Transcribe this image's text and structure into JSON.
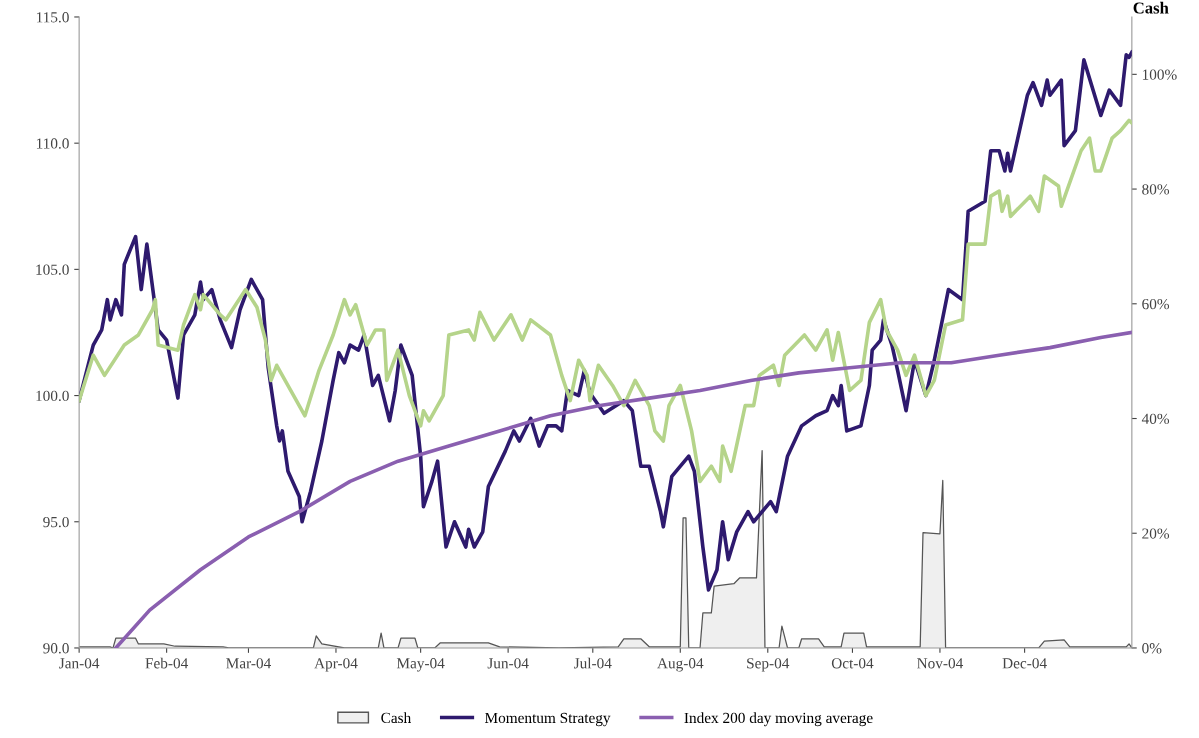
{
  "chart_data": {
    "type": "line",
    "y2label": "Cash",
    "legend": "bottom",
    "grid": false,
    "xlim": [
      "2004-01-01",
      "2005-01-08"
    ],
    "xticks": [
      {
        "value": "2004-01-01",
        "label": "Jan-04"
      },
      {
        "value": "2004-02-01",
        "label": "Feb-04"
      },
      {
        "value": "2004-03-01",
        "label": "Mar-04"
      },
      {
        "value": "2004-04-01",
        "label": "Apr-04"
      },
      {
        "value": "2004-05-01",
        "label": "May-04"
      },
      {
        "value": "2004-06-01",
        "label": "Jun-04"
      },
      {
        "value": "2004-07-01",
        "label": "Jul-04"
      },
      {
        "value": "2004-08-01",
        "label": "Aug-04"
      },
      {
        "value": "2004-09-01",
        "label": "Sep-04"
      },
      {
        "value": "2004-10-01",
        "label": "Oct-04"
      },
      {
        "value": "2004-11-01",
        "label": "Nov-04"
      },
      {
        "value": "2004-12-01",
        "label": "Dec-04"
      }
    ],
    "ylim": [
      90,
      115
    ],
    "yticks": [
      {
        "value": 90,
        "label": "90.0"
      },
      {
        "value": 95,
        "label": "95.0"
      },
      {
        "value": 100,
        "label": "100.0"
      },
      {
        "value": 105,
        "label": "105.0"
      },
      {
        "value": 110,
        "label": "110.0"
      },
      {
        "value": 115,
        "label": "115.0"
      }
    ],
    "y2lim": [
      0,
      110
    ],
    "y2ticks": [
      {
        "value": 0,
        "label": "0%"
      },
      {
        "value": 20,
        "label": "20%"
      },
      {
        "value": 40,
        "label": "40%"
      },
      {
        "value": 60,
        "label": "60%"
      },
      {
        "value": 80,
        "label": "80%"
      },
      {
        "value": 100,
        "label": "100%"
      }
    ],
    "series": [
      {
        "name": "Cash",
        "type": "area",
        "axis": "y2",
        "color": "#efefef",
        "x": [
          "2004-01-01",
          "2004-01-12",
          "2004-01-13",
          "2004-01-14",
          "2004-01-21",
          "2004-01-22",
          "2004-01-31",
          "2004-02-04",
          "2004-02-21",
          "2004-02-23",
          "2004-03-24",
          "2004-03-25",
          "2004-03-27",
          "2004-04-04",
          "2004-04-16",
          "2004-04-17",
          "2004-04-18",
          "2004-04-23",
          "2004-04-24",
          "2004-04-29",
          "2004-04-30",
          "2004-05-06",
          "2004-05-08",
          "2004-05-25",
          "2004-05-29",
          "2004-06-19",
          "2004-07-10",
          "2004-07-12",
          "2004-07-18",
          "2004-07-21",
          "2004-08-01",
          "2004-08-02",
          "2004-08-03",
          "2004-08-04",
          "2004-08-08",
          "2004-08-09",
          "2004-08-12",
          "2004-08-13",
          "2004-08-20",
          "2004-08-22",
          "2004-08-28",
          "2004-08-30",
          "2004-08-31",
          "2004-09-05",
          "2004-09-06",
          "2004-09-08",
          "2004-09-12",
          "2004-09-13",
          "2004-09-19",
          "2004-09-21",
          "2004-09-27",
          "2004-09-28",
          "2004-10-05",
          "2004-10-06",
          "2004-10-25",
          "2004-10-26",
          "2004-11-01",
          "2004-11-02",
          "2004-11-03",
          "2004-12-06",
          "2004-12-08",
          "2004-12-15",
          "2004-12-17",
          "2005-01-06",
          "2005-01-07",
          "2005-01-08"
        ],
        "values": [
          0.2,
          0.2,
          0,
          1.7,
          1.7,
          0.7,
          0.7,
          0.3,
          0.2,
          0,
          0,
          2.1,
          0.7,
          0,
          0,
          2.6,
          0,
          0,
          1.7,
          1.7,
          0,
          0,
          0.9,
          0.9,
          0.2,
          0,
          0.2,
          1.6,
          1.6,
          0.2,
          0.2,
          22.7,
          22.7,
          0,
          0,
          6.1,
          6.1,
          10.8,
          11.2,
          12.2,
          12.2,
          34.4,
          0,
          0,
          3.8,
          0,
          0,
          1.6,
          1.6,
          0.2,
          0.2,
          2.6,
          2.6,
          0.2,
          0.2,
          20.1,
          19.9,
          29.2,
          0,
          0,
          1.2,
          1.4,
          0.2,
          0.2,
          0.7,
          0
        ]
      },
      {
        "name": "Momentum Strategy",
        "color": "#2e1a6e",
        "x": [
          "2004-01-01",
          "2004-01-06",
          "2004-01-09",
          "2004-01-11",
          "2004-01-12",
          "2004-01-14",
          "2004-01-16",
          "2004-01-17",
          "2004-01-21",
          "2004-01-23",
          "2004-01-25",
          "2004-01-29",
          "2004-02-01",
          "2004-02-05",
          "2004-02-07",
          "2004-02-11",
          "2004-02-13",
          "2004-02-14",
          "2004-02-17",
          "2004-02-20",
          "2004-02-24",
          "2004-02-27",
          "2004-03-02",
          "2004-03-03",
          "2004-03-06",
          "2004-03-08",
          "2004-03-11",
          "2004-03-12",
          "2004-03-13",
          "2004-03-15",
          "2004-03-19",
          "2004-03-20",
          "2004-03-23",
          "2004-03-27",
          "2004-03-31",
          "2004-04-02",
          "2004-04-04",
          "2004-04-06",
          "2004-04-09",
          "2004-04-11",
          "2004-04-14",
          "2004-04-16",
          "2004-04-20",
          "2004-04-22",
          "2004-04-24",
          "2004-04-28",
          "2004-05-01",
          "2004-05-02",
          "2004-05-05",
          "2004-05-07",
          "2004-05-10",
          "2004-05-13",
          "2004-05-17",
          "2004-05-18",
          "2004-05-20",
          "2004-05-23",
          "2004-05-25",
          "2004-05-31",
          "2004-06-03",
          "2004-06-05",
          "2004-06-09",
          "2004-06-12",
          "2004-06-15",
          "2004-06-18",
          "2004-06-20",
          "2004-06-22",
          "2004-06-26",
          "2004-06-28",
          "2004-06-30",
          "2004-07-05",
          "2004-07-12",
          "2004-07-15",
          "2004-07-18",
          "2004-07-21",
          "2004-07-25",
          "2004-07-26",
          "2004-07-29",
          "2004-08-04",
          "2004-08-06",
          "2004-08-09",
          "2004-08-11",
          "2004-08-14",
          "2004-08-16",
          "2004-08-18",
          "2004-08-21",
          "2004-08-25",
          "2004-08-27",
          "2004-09-02",
          "2004-09-04",
          "2004-09-08",
          "2004-09-13",
          "2004-09-18",
          "2004-09-22",
          "2004-09-24",
          "2004-09-26",
          "2004-09-27",
          "2004-09-29",
          "2004-10-04",
          "2004-10-07",
          "2004-10-08",
          "2004-10-11",
          "2004-10-12",
          "2004-10-15",
          "2004-10-17",
          "2004-10-20",
          "2004-10-23",
          "2004-10-27",
          "2004-10-30",
          "2004-11-04",
          "2004-11-09",
          "2004-11-11",
          "2004-11-17",
          "2004-11-19",
          "2004-11-22",
          "2004-11-24",
          "2004-11-25",
          "2004-11-26",
          "2004-12-02",
          "2004-12-04",
          "2004-12-07",
          "2004-12-09",
          "2004-12-10",
          "2004-12-14",
          "2004-12-15",
          "2004-12-19",
          "2004-12-22",
          "2004-12-28",
          "2004-12-31",
          "2005-01-04",
          "2005-01-06",
          "2005-01-07",
          "2005-01-08"
        ],
        "values": [
          99.8,
          102.0,
          102.6,
          103.8,
          103.0,
          103.8,
          103.2,
          105.2,
          106.3,
          104.2,
          106.0,
          102.6,
          102.2,
          99.9,
          102.4,
          103.2,
          104.5,
          103.8,
          104.2,
          103.0,
          101.9,
          103.4,
          104.6,
          104.4,
          103.8,
          101.1,
          98.8,
          98.2,
          98.6,
          97.0,
          96.0,
          95.0,
          96.2,
          98.2,
          100.6,
          101.7,
          101.3,
          102.0,
          101.8,
          102.4,
          100.4,
          100.8,
          99.0,
          100.2,
          102.0,
          100.8,
          97.6,
          95.6,
          96.6,
          97.4,
          94.0,
          95.0,
          94.0,
          94.7,
          94.0,
          94.6,
          96.4,
          97.8,
          98.6,
          98.2,
          99.1,
          98.0,
          98.8,
          98.8,
          98.6,
          100.2,
          100.0,
          101.0,
          100.1,
          99.3,
          99.8,
          99.4,
          97.2,
          97.2,
          95.4,
          94.8,
          96.8,
          97.6,
          97.0,
          94.0,
          92.3,
          93.1,
          95.0,
          93.5,
          94.6,
          95.4,
          95.0,
          95.8,
          95.4,
          97.6,
          98.8,
          99.2,
          99.4,
          100.0,
          99.6,
          100.4,
          98.6,
          98.8,
          100.4,
          101.8,
          102.2,
          103.0,
          102.0,
          101.0,
          99.4,
          101.4,
          100.0,
          101.4,
          104.2,
          103.8,
          107.3,
          107.7,
          109.7,
          109.7,
          108.9,
          109.6,
          108.9,
          111.9,
          112.4,
          111.5,
          112.5,
          111.9,
          112.5,
          109.9,
          110.5,
          113.3,
          111.1,
          112.1,
          111.5,
          113.5,
          113.4,
          113.6
        ]
      },
      {
        "color": "#b5d48a",
        "x": [
          "2004-01-01",
          "2004-01-06",
          "2004-01-10",
          "2004-01-17",
          "2004-01-22",
          "2004-01-27",
          "2004-01-28",
          "2004-01-29",
          "2004-02-05",
          "2004-02-07",
          "2004-02-11",
          "2004-02-13",
          "2004-02-14",
          "2004-02-20",
          "2004-02-22",
          "2004-02-29",
          "2004-03-04",
          "2004-03-07",
          "2004-03-09",
          "2004-03-11",
          "2004-03-17",
          "2004-03-21",
          "2004-03-26",
          "2004-03-31",
          "2004-04-04",
          "2004-04-06",
          "2004-04-08",
          "2004-04-12",
          "2004-04-15",
          "2004-04-18",
          "2004-04-19",
          "2004-04-23",
          "2004-04-27",
          "2004-05-01",
          "2004-05-02",
          "2004-05-04",
          "2004-05-09",
          "2004-05-11",
          "2004-05-18",
          "2004-05-20",
          "2004-05-22",
          "2004-05-27",
          "2004-06-02",
          "2004-06-06",
          "2004-06-09",
          "2004-06-16",
          "2004-06-20",
          "2004-06-23",
          "2004-06-26",
          "2004-06-29",
          "2004-06-30",
          "2004-07-03",
          "2004-07-08",
          "2004-07-12",
          "2004-07-16",
          "2004-07-21",
          "2004-07-23",
          "2004-07-26",
          "2004-07-28",
          "2004-08-01",
          "2004-08-05",
          "2004-08-08",
          "2004-08-12",
          "2004-08-15",
          "2004-08-16",
          "2004-08-19",
          "2004-08-24",
          "2004-08-27",
          "2004-08-29",
          "2004-09-03",
          "2004-09-05",
          "2004-09-07",
          "2004-09-14",
          "2004-09-18",
          "2004-09-22",
          "2004-09-24",
          "2004-09-26",
          "2004-09-30",
          "2004-10-04",
          "2004-10-07",
          "2004-10-11",
          "2004-10-13",
          "2004-10-17",
          "2004-10-20",
          "2004-10-23",
          "2004-10-27",
          "2004-10-30",
          "2004-11-03",
          "2004-11-09",
          "2004-11-11",
          "2004-11-17",
          "2004-11-19",
          "2004-11-22",
          "2004-11-23",
          "2004-11-25",
          "2004-11-26",
          "2004-12-03",
          "2004-12-06",
          "2004-12-08",
          "2004-12-13",
          "2004-12-14",
          "2004-12-21",
          "2004-12-24",
          "2004-12-26",
          "2004-12-28",
          "2005-01-01",
          "2005-01-04",
          "2005-01-07",
          "2005-01-08"
        ],
        "values": [
          99.8,
          101.6,
          100.8,
          102.0,
          102.4,
          103.4,
          103.8,
          102.0,
          101.8,
          102.8,
          104.0,
          103.4,
          104.0,
          103.2,
          103.0,
          104.2,
          103.5,
          102.2,
          100.6,
          101.2,
          100.0,
          99.2,
          101.0,
          102.4,
          103.8,
          103.2,
          103.6,
          102.0,
          102.6,
          102.6,
          100.6,
          101.8,
          100.0,
          98.8,
          99.4,
          99.0,
          100.0,
          102.4,
          102.6,
          102.2,
          103.3,
          102.2,
          103.2,
          102.2,
          103.0,
          102.4,
          100.8,
          99.8,
          101.4,
          100.8,
          99.8,
          101.2,
          100.4,
          99.6,
          100.6,
          99.6,
          98.6,
          98.2,
          99.6,
          100.4,
          98.6,
          96.6,
          97.2,
          96.6,
          98.0,
          97.0,
          99.6,
          99.6,
          100.8,
          101.2,
          100.4,
          101.6,
          102.4,
          101.8,
          102.6,
          101.4,
          102.5,
          100.2,
          100.6,
          102.9,
          103.8,
          102.6,
          101.8,
          100.8,
          101.6,
          100.0,
          100.6,
          102.8,
          103.0,
          106.0,
          106.0,
          107.9,
          108.1,
          107.3,
          107.9,
          107.1,
          107.9,
          107.3,
          108.7,
          108.3,
          107.5,
          109.7,
          110.2,
          108.9,
          108.9,
          110.2,
          110.5,
          110.9,
          110.8
        ]
      },
      {
        "name": "Index 200 day moving average",
        "color": "#8a5fb0",
        "x": [
          "2004-01-14",
          "2004-01-26",
          "2004-02-13",
          "2004-03-01",
          "2004-03-19",
          "2004-04-06",
          "2004-04-23",
          "2004-05-11",
          "2004-05-29",
          "2004-06-16",
          "2004-07-03",
          "2004-07-21",
          "2004-08-08",
          "2004-08-26",
          "2004-09-12",
          "2004-09-30",
          "2004-10-18",
          "2004-11-05",
          "2004-11-22",
          "2004-12-10",
          "2004-12-28",
          "2005-01-08"
        ],
        "values": [
          90.0,
          91.5,
          93.1,
          94.4,
          95.4,
          96.6,
          97.4,
          98.0,
          98.6,
          99.2,
          99.6,
          99.9,
          100.2,
          100.6,
          100.9,
          101.1,
          101.3,
          101.3,
          101.6,
          101.9,
          102.3,
          102.5
        ]
      }
    ]
  }
}
